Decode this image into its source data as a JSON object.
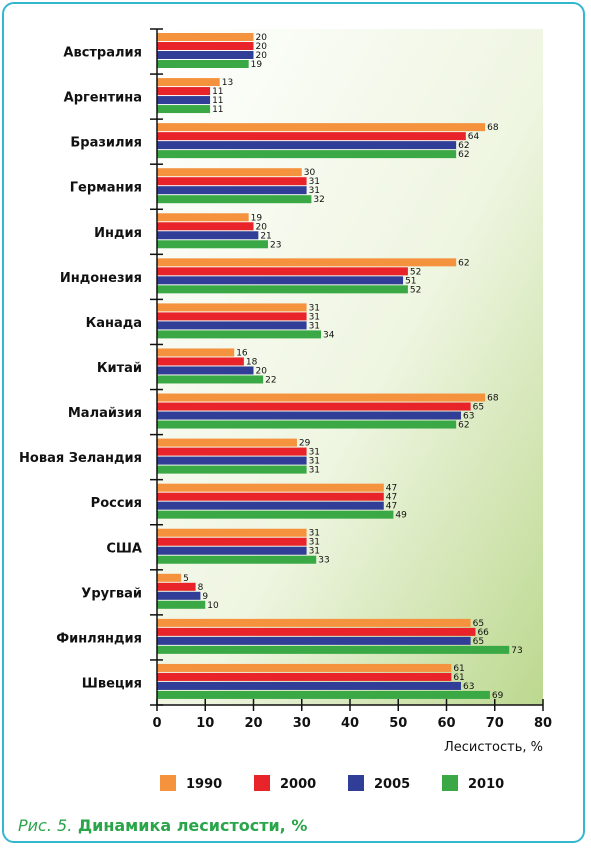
{
  "chart_data": {
    "type": "bar",
    "orientation": "horizontal",
    "categories": [
      "Австралия",
      "Аргентина",
      "Бразилия",
      "Германия",
      "Индия",
      "Индонезия",
      "Канада",
      "Китай",
      "Малайзия",
      "Новая Зеландия",
      "Россия",
      "США",
      "Уругвай",
      "Финляндия",
      "Швеция"
    ],
    "series": [
      {
        "name": "1990",
        "color": "#f5923e",
        "values": [
          20,
          13,
          68,
          30,
          19,
          62,
          31,
          16,
          68,
          29,
          47,
          31,
          5,
          65,
          61
        ]
      },
      {
        "name": "2000",
        "color": "#e8232a",
        "values": [
          20,
          11,
          64,
          31,
          20,
          52,
          31,
          18,
          65,
          31,
          47,
          31,
          8,
          66,
          61
        ]
      },
      {
        "name": "2005",
        "color": "#313e97",
        "values": [
          20,
          11,
          62,
          31,
          21,
          51,
          31,
          20,
          63,
          31,
          47,
          31,
          9,
          65,
          63
        ]
      },
      {
        "name": "2010",
        "color": "#3aa845",
        "values": [
          19,
          11,
          62,
          32,
          23,
          52,
          34,
          22,
          62,
          31,
          49,
          33,
          10,
          73,
          69
        ]
      }
    ],
    "xlabel": "Лесистость, %",
    "xlim": [
      0,
      80
    ],
    "xticks": [
      0,
      10,
      20,
      30,
      40,
      50,
      60,
      70,
      80
    ],
    "legend_position": "bottom",
    "grid": false
  },
  "caption": {
    "figure": "Рис. 5.",
    "title": "Динамика лесистости, %"
  }
}
